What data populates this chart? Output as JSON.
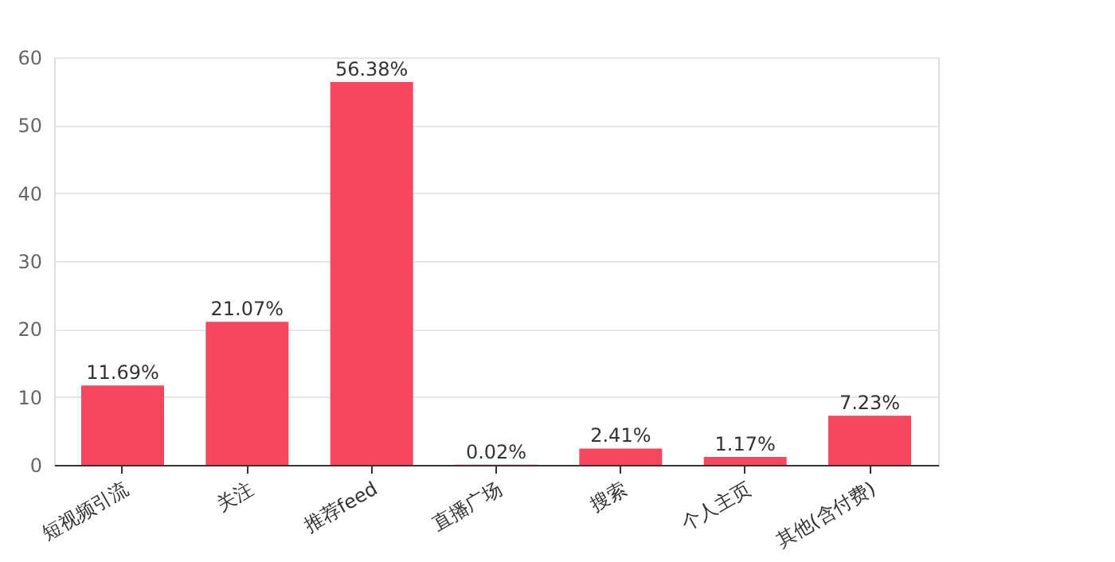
{
  "chart_data": {
    "type": "bar",
    "categories": [
      "短视频引流",
      "关注",
      "推荐feed",
      "直播广场",
      "搜索",
      "个人主页",
      "其他(含付费)"
    ],
    "values": [
      11.69,
      21.07,
      56.38,
      0.02,
      2.41,
      1.17,
      7.23
    ],
    "value_labels": [
      "11.69%",
      "21.07%",
      "56.38%",
      "0.02%",
      "2.41%",
      "1.17%",
      "7.23%"
    ],
    "color": "#f5475e",
    "ylim": [
      0,
      60
    ],
    "yticks": [
      0,
      10,
      20,
      30,
      40,
      50,
      60
    ],
    "grid": "y"
  }
}
